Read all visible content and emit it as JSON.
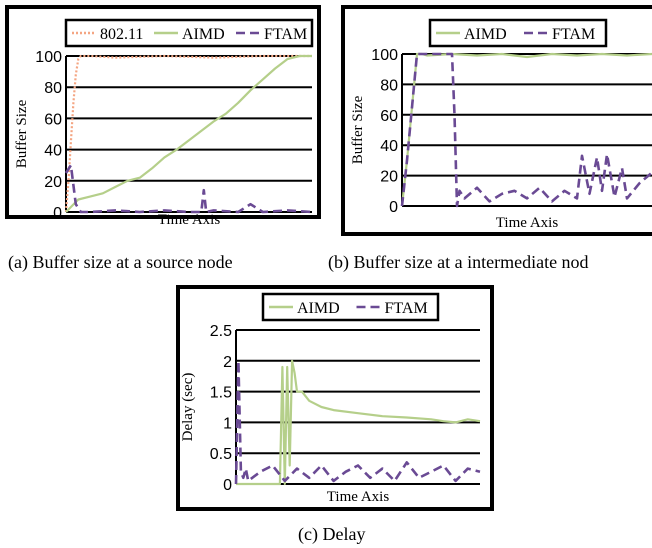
{
  "chart_data": [
    {
      "id": "a",
      "type": "line",
      "xlabel": "Time Axis",
      "ylabel": "Buffer Size",
      "ylim": [
        0,
        100
      ],
      "yticks": [
        "0",
        "20",
        "40",
        "60",
        "80",
        "100"
      ],
      "grid": true,
      "legend_position": "top",
      "series": [
        {
          "name": "802.11",
          "style": "dotted",
          "color": "#f4a582",
          "x": [
            0,
            1,
            2,
            3,
            4,
            5,
            6,
            10,
            20,
            40,
            60,
            80,
            100
          ],
          "y": [
            0,
            20,
            45,
            70,
            88,
            98,
            100,
            100,
            99,
            100,
            99,
            100,
            100
          ]
        },
        {
          "name": "AIMD",
          "style": "solid",
          "color": "#b5cf8a",
          "x": [
            0,
            5,
            10,
            15,
            20,
            25,
            30,
            35,
            40,
            45,
            50,
            55,
            60,
            65,
            70,
            75,
            80,
            85,
            90,
            95,
            100
          ],
          "y": [
            0,
            8,
            10,
            12,
            16,
            20,
            22,
            28,
            35,
            40,
            46,
            52,
            58,
            63,
            70,
            78,
            85,
            92,
            98,
            100,
            100
          ]
        },
        {
          "name": "FTAM",
          "style": "dashed",
          "color": "#6a4a94",
          "x": [
            0,
            2,
            4,
            6,
            8,
            10,
            20,
            30,
            40,
            50,
            55,
            56,
            57,
            60,
            70,
            75,
            80,
            90,
            100
          ],
          "y": [
            25,
            30,
            5,
            0,
            0,
            0,
            1,
            0,
            1,
            0,
            0,
            14,
            0,
            1,
            0,
            5,
            0,
            1,
            0
          ]
        }
      ],
      "caption": "(a)  Buffer size at a source node"
    },
    {
      "id": "b",
      "type": "line",
      "xlabel": "Time Axis",
      "ylabel": "Buffer Size",
      "ylim": [
        0,
        100
      ],
      "yticks": [
        "0",
        "20",
        "40",
        "60",
        "80",
        "100"
      ],
      "grid": true,
      "legend_position": "top",
      "series": [
        {
          "name": "AIMD",
          "style": "solid",
          "color": "#b5cf8a",
          "x": [
            0,
            2,
            4,
            6,
            8,
            10,
            20,
            30,
            40,
            50,
            60,
            70,
            80,
            90,
            100
          ],
          "y": [
            0,
            30,
            65,
            100,
            100,
            99,
            100,
            99,
            100,
            98,
            100,
            99,
            100,
            99,
            100
          ]
        },
        {
          "name": "FTAM",
          "style": "dashed",
          "color": "#6a4a94",
          "x": [
            0,
            2,
            4,
            6,
            8,
            10,
            15,
            20,
            21,
            22,
            23,
            25,
            30,
            35,
            40,
            45,
            50,
            55,
            60,
            65,
            70,
            72,
            75,
            78,
            80,
            82,
            85,
            88,
            90,
            95,
            100
          ],
          "y": [
            0,
            30,
            65,
            100,
            100,
            100,
            100,
            100,
            60,
            0,
            10,
            5,
            12,
            3,
            8,
            10,
            5,
            12,
            3,
            10,
            5,
            33,
            8,
            32,
            10,
            34,
            6,
            25,
            5,
            15,
            22
          ]
        }
      ],
      "caption": "(b)  Buffer size at a intermediate nod"
    },
    {
      "id": "c",
      "type": "line",
      "xlabel": "Time Axis",
      "ylabel": "Delay (sec)",
      "ylim": [
        0,
        2.5
      ],
      "yticks": [
        "0",
        "0.5",
        "1",
        "1.5",
        "2",
        "2.5"
      ],
      "grid": true,
      "legend_position": "top",
      "series": [
        {
          "name": "AIMD",
          "style": "solid",
          "color": "#b5cf8a",
          "x": [
            0,
            10,
            18,
            19,
            20,
            21,
            22,
            23,
            24,
            25,
            27,
            30,
            35,
            40,
            50,
            60,
            70,
            80,
            85,
            90,
            95,
            100
          ],
          "y": [
            0,
            0,
            0,
            1.9,
            0,
            1.9,
            0.3,
            2.0,
            1.8,
            1.5,
            1.5,
            1.35,
            1.25,
            1.2,
            1.15,
            1.1,
            1.08,
            1.05,
            1.02,
            1.0,
            1.05,
            1.02
          ]
        },
        {
          "name": "FTAM",
          "style": "dashed",
          "color": "#6a4a94",
          "x": [
            0,
            1,
            2,
            3,
            4,
            5,
            10,
            15,
            20,
            25,
            30,
            35,
            40,
            45,
            50,
            55,
            60,
            65,
            70,
            75,
            80,
            85,
            90,
            95,
            100
          ],
          "y": [
            0,
            2.0,
            0.2,
            0.1,
            0.25,
            0.05,
            0.2,
            0.3,
            0.05,
            0.25,
            0.1,
            0.3,
            0.05,
            0.2,
            0.3,
            0.1,
            0.25,
            0.05,
            0.35,
            0.1,
            0.2,
            0.3,
            0.05,
            0.25,
            0.2
          ]
        }
      ],
      "caption": "(c)  Delay"
    }
  ]
}
